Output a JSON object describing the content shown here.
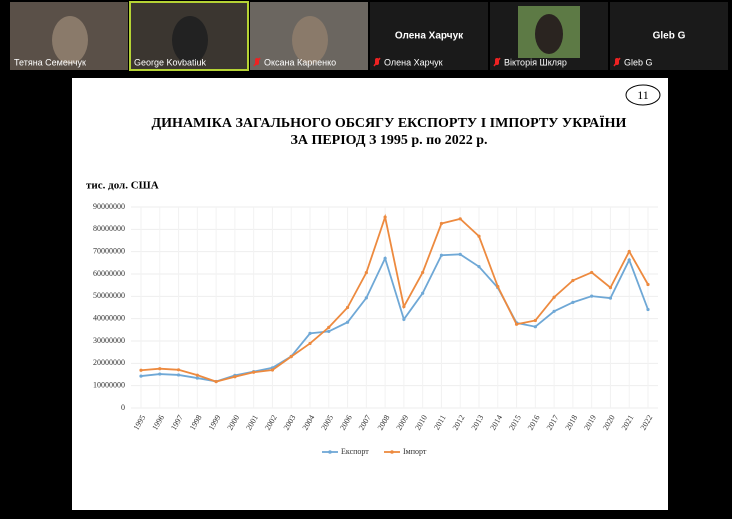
{
  "participants": [
    "Тетяна Семенчук",
    "George Kovbatiuk",
    "Оксана Карпенко",
    "Олена Харчук",
    "Вікторія Шкляр",
    "Gleb G"
  ],
  "slide_number": "11",
  "chart_data": {
    "type": "line",
    "title": "ДИНАМІКА ЗАГАЛЬНОГО ОБСЯГУ ЕКСПОРТУ І ІМПОРТУ УКРАЇНИ",
    "subtitle": "ЗА ПЕРІОД З 1995 р. по 2022 р.",
    "y_label": "тис. дол. США",
    "categories": [
      "1995",
      "1996",
      "1997",
      "1998",
      "1999",
      "2000",
      "2001",
      "2002",
      "2003",
      "2004",
      "2005",
      "2006",
      "2007",
      "2008",
      "2009",
      "2010",
      "2011",
      "2012",
      "2013",
      "2014",
      "2015",
      "2016",
      "2017",
      "2018",
      "2019",
      "2020",
      "2021",
      "2022"
    ],
    "series": [
      {
        "name": "Експорт",
        "color": "#6fa8d6",
        "values": [
          14300000,
          15200000,
          14800000,
          13400000,
          11900000,
          14600000,
          16300000,
          18000000,
          23100000,
          33400000,
          34300000,
          38400000,
          49300000,
          67000000,
          39700000,
          51400000,
          68400000,
          68800000,
          63300000,
          53900000,
          38100000,
          36400000,
          43300000,
          47300000,
          50100000,
          49200000,
          66300000,
          44100000
        ]
      },
      {
        "name": "Імпорт",
        "color": "#ed8a3f",
        "values": [
          16900000,
          17600000,
          17100000,
          14700000,
          11800000,
          14000000,
          16000000,
          17000000,
          23000000,
          28900000,
          36100000,
          45000000,
          60600000,
          85500000,
          45400000,
          60700000,
          82600000,
          84700000,
          76900000,
          54400000,
          37500000,
          39200000,
          49600000,
          57100000,
          60700000,
          53900000,
          70100000,
          55300000
        ]
      }
    ],
    "ylim": [
      0,
      90000000
    ],
    "yticks": [
      0,
      10000000,
      20000000,
      30000000,
      40000000,
      50000000,
      60000000,
      70000000,
      80000000,
      90000000
    ],
    "grid": true,
    "legend": "bottom"
  }
}
